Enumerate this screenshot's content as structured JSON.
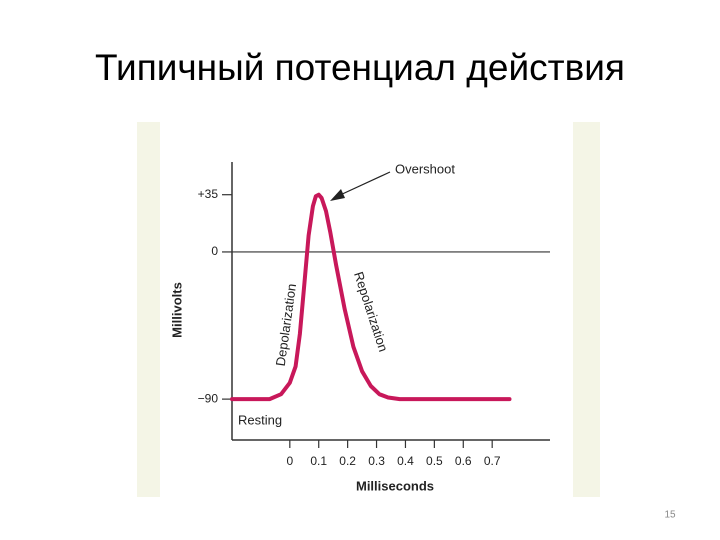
{
  "title": "Типичный потенциал действия",
  "page_number": "15",
  "chart_data": {
    "type": "line",
    "xlabel": "Milliseconds",
    "ylabel": "Millivolts",
    "xlim": [
      -0.2,
      0.9
    ],
    "ylim": [
      -115,
      55
    ],
    "xticks": [
      0,
      0.1,
      0.2,
      0.3,
      0.4,
      0.5,
      0.6,
      0.7
    ],
    "yticks": [
      {
        "value": 35,
        "label": "+35"
      },
      0,
      {
        "value": -90,
        "label": "−90"
      }
    ],
    "reference_line": 0,
    "annotations": {
      "overshoot": "Overshoot",
      "depolarization": "Depolarization",
      "repolarization": "Repolarization",
      "resting": "Resting"
    },
    "series": [
      {
        "name": null,
        "color": "#c8185a",
        "x": [
          -0.2,
          -0.07,
          -0.03,
          0.0,
          0.02,
          0.035,
          0.05,
          0.065,
          0.08,
          0.09,
          0.1,
          0.11,
          0.125,
          0.14,
          0.16,
          0.19,
          0.22,
          0.25,
          0.28,
          0.31,
          0.34,
          0.38,
          0.76
        ],
        "y": [
          -90,
          -90,
          -87,
          -80,
          -70,
          -50,
          -20,
          10,
          28,
          34,
          35,
          33,
          25,
          12,
          -8,
          -35,
          -58,
          -73,
          -82,
          -87,
          -89,
          -90,
          -90
        ]
      }
    ]
  }
}
